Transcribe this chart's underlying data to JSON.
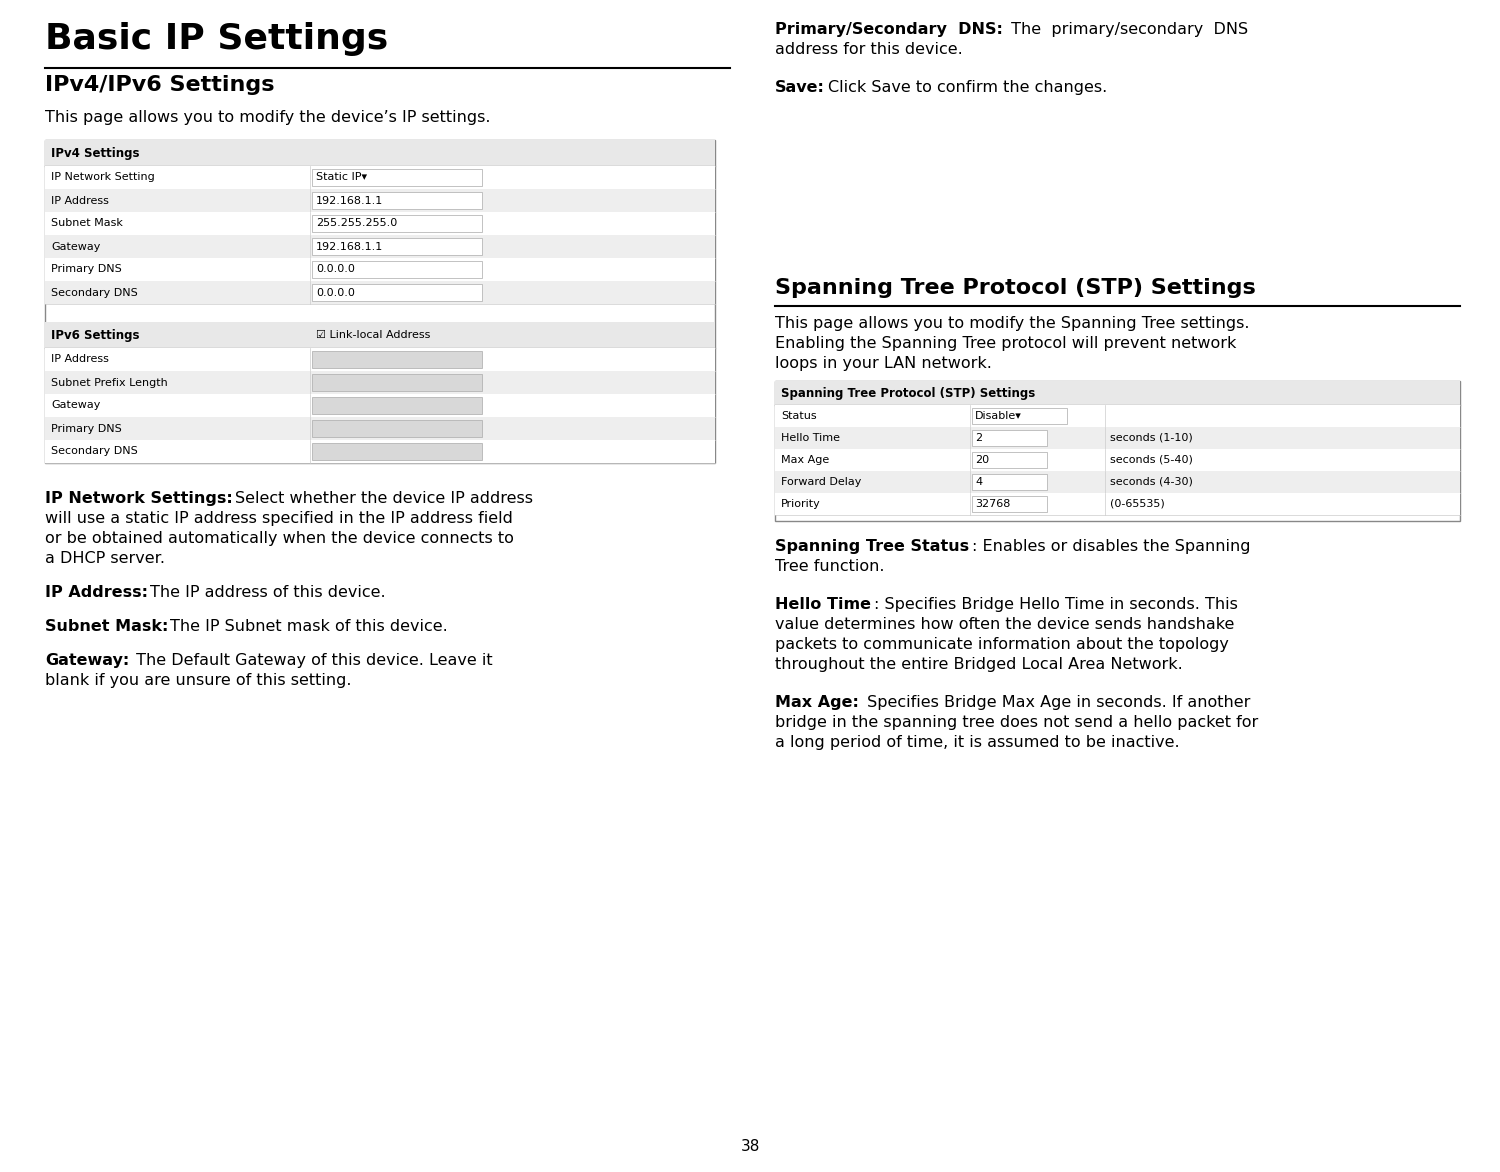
{
  "page_bg": "#ffffff",
  "main_title": "Basic IP Settings",
  "section1_title": "IPv4/IPv6 Settings",
  "section1_intro": "This page allows you to modify the device’s IP settings.",
  "ipv4_table_title": "IPv4 Settings",
  "ipv4_rows": [
    [
      "IP Network Setting",
      "Static IP▾"
    ],
    [
      "IP Address",
      "192.168.1.1"
    ],
    [
      "Subnet Mask",
      "255.255.255.0"
    ],
    [
      "Gateway",
      "192.168.1.1"
    ],
    [
      "Primary DNS",
      "0.0.0.0"
    ],
    [
      "Secondary DNS",
      "0.0.0.0"
    ]
  ],
  "ipv6_table_title": "IPv6 Settings",
  "ipv6_checkbox": "☑ Link-local Address",
  "ipv6_rows": [
    [
      "IP Address",
      ""
    ],
    [
      "Subnet Prefix Length",
      ""
    ],
    [
      "Gateway",
      ""
    ],
    [
      "Primary DNS",
      ""
    ],
    [
      "Secondary DNS",
      ""
    ]
  ],
  "section2_title": "Spanning Tree Protocol (STP) Settings",
  "stp_table_title": "Spanning Tree Protocol (STP) Settings",
  "stp_rows": [
    [
      "Status",
      "Disable▾",
      ""
    ],
    [
      "Hello Time",
      "2",
      "seconds (1-10)"
    ],
    [
      "Max Age",
      "20",
      "seconds (5-40)"
    ],
    [
      "Forward Delay",
      "4",
      "seconds (4-30)"
    ],
    [
      "Priority",
      "32768",
      "(0-65535)"
    ]
  ],
  "page_number": "38",
  "table_border": "#888888",
  "table_header_bg": "#e8e8e8",
  "table_row_bg_alt": "#eeeeee",
  "table_row_bg": "#ffffff",
  "table_input_bg": "#d8d8d8",
  "col_divider": "#aaaaaa"
}
